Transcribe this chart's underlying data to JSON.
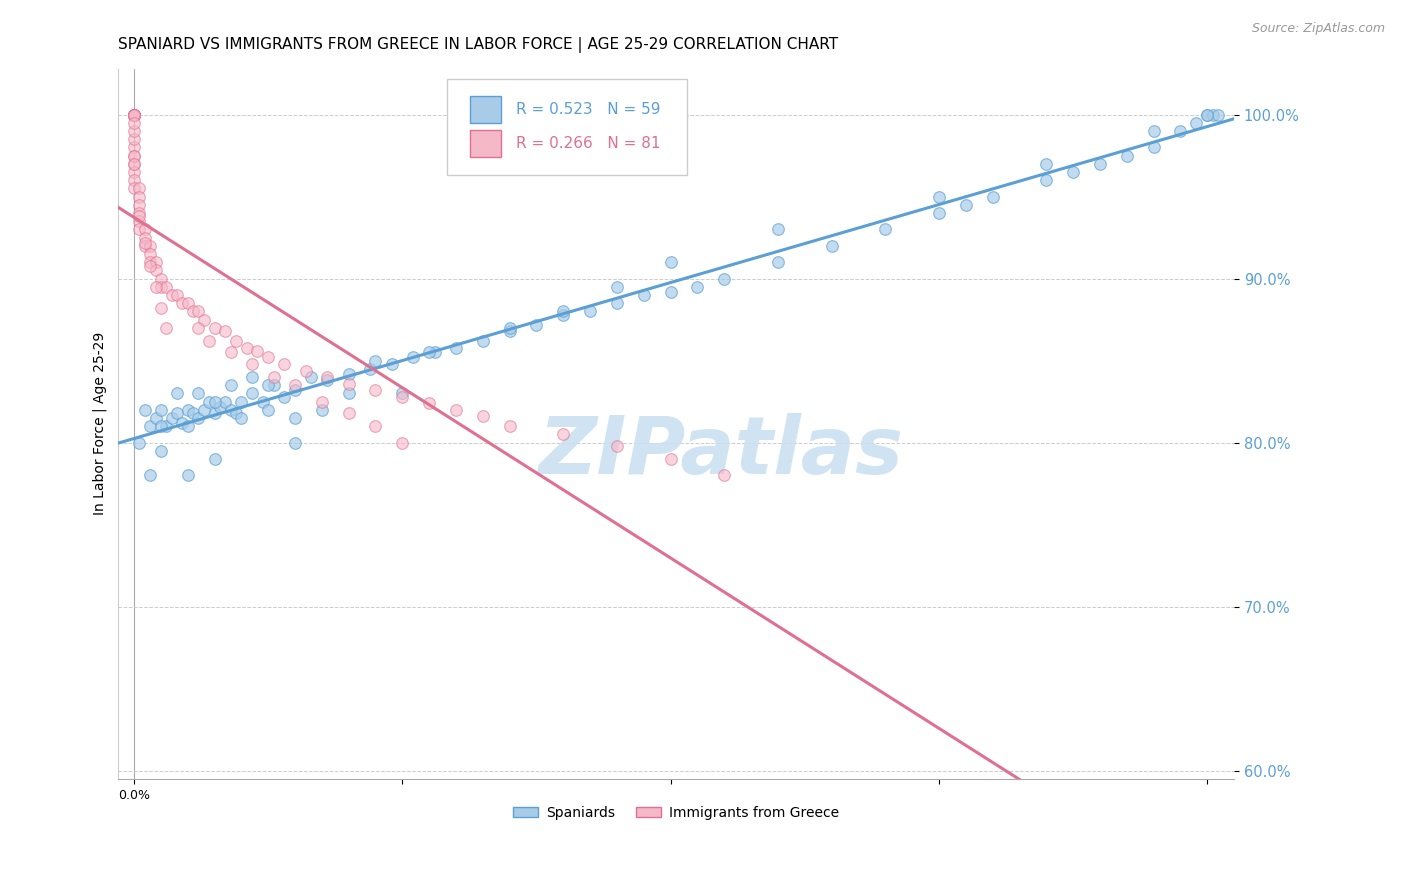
{
  "title": "SPANIARD VS IMMIGRANTS FROM GREECE IN LABOR FORCE | AGE 25-29 CORRELATION CHART",
  "source": "Source: ZipAtlas.com",
  "ylabel": "In Labor Force | Age 25-29",
  "xlim": [
    -0.003,
    0.205
  ],
  "ylim": [
    0.595,
    1.028
  ],
  "yticks": [
    0.6,
    0.7,
    0.8,
    0.9,
    1.0
  ],
  "ytick_labels": [
    "60.0%",
    "70.0%",
    "80.0%",
    "90.0%",
    "100.0%"
  ],
  "blue_R": 0.523,
  "blue_N": 59,
  "pink_R": 0.266,
  "pink_N": 81,
  "blue_color": "#a8cce8",
  "pink_color": "#f5b8c8",
  "blue_edge_color": "#5b9fd4",
  "pink_edge_color": "#e07090",
  "blue_line_color": "#5b9fd4",
  "pink_line_color": "#e07090",
  "blue_scatter_x": [
    0.001,
    0.002,
    0.003,
    0.004,
    0.005,
    0.006,
    0.007,
    0.008,
    0.009,
    0.01,
    0.011,
    0.012,
    0.013,
    0.014,
    0.015,
    0.016,
    0.017,
    0.018,
    0.019,
    0.02,
    0.022,
    0.024,
    0.026,
    0.028,
    0.03,
    0.033,
    0.036,
    0.04,
    0.044,
    0.048,
    0.052,
    0.056,
    0.06,
    0.065,
    0.07,
    0.075,
    0.08,
    0.085,
    0.09,
    0.095,
    0.1,
    0.105,
    0.11,
    0.12,
    0.13,
    0.14,
    0.15,
    0.155,
    0.16,
    0.17,
    0.175,
    0.18,
    0.185,
    0.19,
    0.195,
    0.198,
    0.2,
    0.201,
    0.202
  ],
  "blue_scatter_y": [
    0.8,
    0.82,
    0.81,
    0.815,
    0.82,
    0.81,
    0.815,
    0.818,
    0.812,
    0.82,
    0.818,
    0.815,
    0.82,
    0.825,
    0.818,
    0.822,
    0.825,
    0.82,
    0.818,
    0.815,
    0.83,
    0.825,
    0.835,
    0.828,
    0.832,
    0.84,
    0.838,
    0.842,
    0.845,
    0.848,
    0.852,
    0.855,
    0.858,
    0.862,
    0.868,
    0.872,
    0.878,
    0.88,
    0.885,
    0.89,
    0.892,
    0.895,
    0.9,
    0.91,
    0.92,
    0.93,
    0.94,
    0.945,
    0.95,
    0.96,
    0.965,
    0.97,
    0.975,
    0.98,
    0.99,
    0.995,
    1.0,
    1.0,
    1.0
  ],
  "blue_extra_x": [
    0.003,
    0.005,
    0.008,
    0.01,
    0.012,
    0.015,
    0.018,
    0.022,
    0.025,
    0.03,
    0.035,
    0.04,
    0.045,
    0.05,
    0.055,
    0.07,
    0.08,
    0.09,
    0.1,
    0.12,
    0.15,
    0.17,
    0.19,
    0.2,
    0.005,
    0.01,
    0.015,
    0.02,
    0.025,
    0.03
  ],
  "blue_extra_y": [
    0.78,
    0.81,
    0.83,
    0.78,
    0.83,
    0.825,
    0.835,
    0.84,
    0.82,
    0.8,
    0.82,
    0.83,
    0.85,
    0.83,
    0.855,
    0.87,
    0.88,
    0.895,
    0.91,
    0.93,
    0.95,
    0.97,
    0.99,
    1.0,
    0.795,
    0.81,
    0.79,
    0.825,
    0.835,
    0.815
  ],
  "pink_scatter_x": [
    0.0,
    0.0,
    0.0,
    0.0,
    0.0,
    0.0,
    0.0,
    0.0,
    0.0,
    0.0,
    0.0,
    0.0,
    0.0,
    0.0,
    0.0,
    0.0,
    0.001,
    0.001,
    0.001,
    0.001,
    0.001,
    0.001,
    0.002,
    0.002,
    0.002,
    0.003,
    0.003,
    0.003,
    0.004,
    0.004,
    0.005,
    0.005,
    0.006,
    0.007,
    0.008,
    0.009,
    0.01,
    0.011,
    0.012,
    0.013,
    0.015,
    0.017,
    0.019,
    0.021,
    0.023,
    0.025,
    0.028,
    0.032,
    0.036,
    0.04,
    0.045,
    0.05,
    0.055,
    0.06,
    0.065,
    0.07,
    0.08,
    0.09,
    0.1,
    0.11,
    0.012,
    0.014,
    0.018,
    0.022,
    0.026,
    0.03,
    0.035,
    0.04,
    0.045,
    0.05,
    0.0,
    0.0,
    0.0,
    0.0,
    0.0,
    0.001,
    0.002,
    0.003,
    0.004,
    0.005,
    0.006
  ],
  "pink_scatter_y": [
    1.0,
    1.0,
    1.0,
    1.0,
    1.0,
    1.0,
    1.0,
    1.0,
    1.0,
    1.0,
    0.98,
    0.975,
    0.97,
    0.965,
    0.96,
    0.955,
    0.955,
    0.95,
    0.945,
    0.94,
    0.935,
    0.93,
    0.93,
    0.925,
    0.92,
    0.92,
    0.915,
    0.91,
    0.91,
    0.905,
    0.9,
    0.895,
    0.895,
    0.89,
    0.89,
    0.885,
    0.885,
    0.88,
    0.88,
    0.875,
    0.87,
    0.868,
    0.862,
    0.858,
    0.856,
    0.852,
    0.848,
    0.844,
    0.84,
    0.836,
    0.832,
    0.828,
    0.824,
    0.82,
    0.816,
    0.81,
    0.805,
    0.798,
    0.79,
    0.78,
    0.87,
    0.862,
    0.855,
    0.848,
    0.84,
    0.835,
    0.825,
    0.818,
    0.81,
    0.8,
    0.975,
    0.985,
    0.99,
    0.995,
    0.97,
    0.938,
    0.922,
    0.908,
    0.895,
    0.882,
    0.87
  ],
  "watermark_text": "ZIPatlas",
  "watermark_color": "#c8dff0",
  "title_fontsize": 11,
  "tick_color": "#5b9fd4",
  "source_color": "#999999"
}
